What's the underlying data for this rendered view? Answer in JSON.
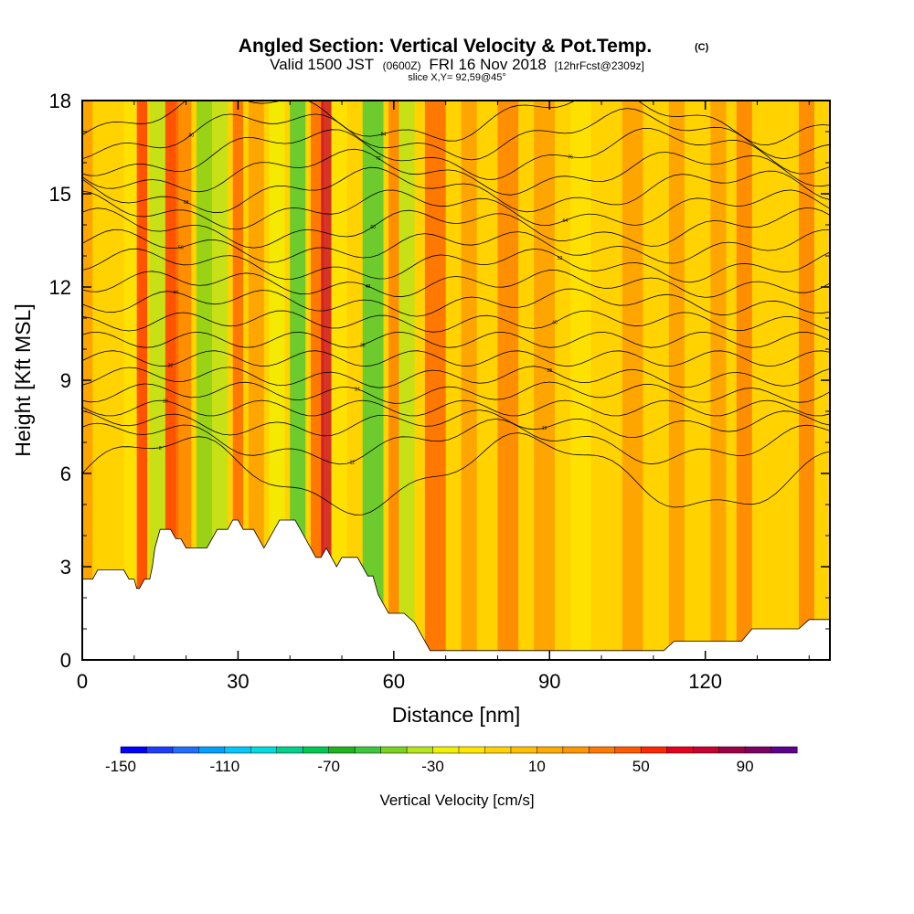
{
  "header": {
    "title": "Angled Section: Vertical Velocity & Pot.Temp.",
    "title_unit": "(C)",
    "valid_prefix": "Valid 1500 JST",
    "valid_utc": "(0600Z)",
    "valid_date": "FRI 16 Nov 2018",
    "forecast_info": "[12hrFcst@2309z]",
    "slice_info": "slice X,Y= 92,59@45°"
  },
  "chart_data": {
    "type": "heatmap",
    "xlabel": "Distance [nm]",
    "ylabel": "Height [Kft MSL]",
    "xlim": [
      0,
      144
    ],
    "ylim": [
      0,
      18
    ],
    "x_ticks": [
      0,
      30,
      60,
      90,
      120
    ],
    "y_ticks": [
      0,
      3,
      6,
      9,
      12,
      15,
      18
    ],
    "colorbar": {
      "label": "Vertical Velocity [cm/s]",
      "min": -150,
      "max": 110,
      "step": 10,
      "tick_values": [
        -150,
        -110,
        -70,
        -30,
        10,
        50,
        90
      ],
      "colors": [
        "#0000ff",
        "#1e3cff",
        "#1e6eff",
        "#00a0ff",
        "#00c8ff",
        "#00dcdc",
        "#00d28c",
        "#00c850",
        "#1eb41e",
        "#3cc83c",
        "#78d21e",
        "#b4e61e",
        "#f0f000",
        "#ffe600",
        "#ffd200",
        "#ffbe00",
        "#ffaa00",
        "#ff9600",
        "#ff7800",
        "#ff5a00",
        "#ff2800",
        "#e6001e",
        "#c80032",
        "#a00046",
        "#7d0064",
        "#5a008c"
      ]
    },
    "velocity_columns": [
      {
        "x": 0,
        "w": 2,
        "v": 20
      },
      {
        "x": 8,
        "w": 3,
        "v": -20
      },
      {
        "x": 10.5,
        "w": 2,
        "v": 50
      },
      {
        "x": 13,
        "w": 3,
        "v": -40
      },
      {
        "x": 16,
        "w": 2.5,
        "v": 50
      },
      {
        "x": 18,
        "w": 3,
        "v": 30
      },
      {
        "x": 22,
        "w": 3,
        "v": -50
      },
      {
        "x": 25,
        "w": 3,
        "v": -40
      },
      {
        "x": 29,
        "w": 2,
        "v": 40
      },
      {
        "x": 32,
        "w": 3,
        "v": 20
      },
      {
        "x": 36,
        "w": 3,
        "v": -30
      },
      {
        "x": 40,
        "w": 3,
        "v": -60
      },
      {
        "x": 44,
        "w": 2.5,
        "v": 40
      },
      {
        "x": 46,
        "w": 2,
        "v": 70
      },
      {
        "x": 48,
        "w": 3,
        "v": -20
      },
      {
        "x": 54,
        "w": 4,
        "v": -60
      },
      {
        "x": 59,
        "w": 2,
        "v": 30
      },
      {
        "x": 61,
        "w": 3,
        "v": -40
      },
      {
        "x": 66,
        "w": 4,
        "v": 40
      },
      {
        "x": 73,
        "w": 3,
        "v": 20
      },
      {
        "x": 80,
        "w": 4,
        "v": 30
      },
      {
        "x": 87,
        "w": 4,
        "v": 20
      },
      {
        "x": 94,
        "w": 4,
        "v": -20
      },
      {
        "x": 104,
        "w": 4,
        "v": 20
      },
      {
        "x": 113,
        "w": 3,
        "v": 20
      },
      {
        "x": 121,
        "w": 3,
        "v": 20
      },
      {
        "x": 126,
        "w": 3,
        "v": 30
      },
      {
        "x": 138,
        "w": 3,
        "v": 30
      }
    ],
    "terrain": [
      [
        0,
        2.6
      ],
      [
        2,
        2.6
      ],
      [
        3,
        2.9
      ],
      [
        8,
        2.9
      ],
      [
        9,
        2.6
      ],
      [
        10,
        2.6
      ],
      [
        10.5,
        2.3
      ],
      [
        11,
        2.3
      ],
      [
        12,
        2.6
      ],
      [
        13,
        2.6
      ],
      [
        13.5,
        3.0
      ],
      [
        14,
        3.6
      ],
      [
        15,
        4.2
      ],
      [
        17,
        4.2
      ],
      [
        18,
        3.9
      ],
      [
        19,
        3.9
      ],
      [
        20,
        3.6
      ],
      [
        24,
        3.6
      ],
      [
        25,
        3.9
      ],
      [
        26,
        4.2
      ],
      [
        28,
        4.2
      ],
      [
        29,
        4.5
      ],
      [
        30,
        4.5
      ],
      [
        31,
        4.2
      ],
      [
        33,
        4.2
      ],
      [
        34,
        3.9
      ],
      [
        35,
        3.6
      ],
      [
        36,
        3.9
      ],
      [
        37,
        4.2
      ],
      [
        38,
        4.5
      ],
      [
        41,
        4.5
      ],
      [
        42,
        4.2
      ],
      [
        43,
        3.9
      ],
      [
        44,
        3.6
      ],
      [
        45,
        3.3
      ],
      [
        46,
        3.3
      ],
      [
        47,
        3.6
      ],
      [
        48,
        3.3
      ],
      [
        49,
        3.0
      ],
      [
        50,
        3.3
      ],
      [
        53,
        3.3
      ],
      [
        54,
        3.0
      ],
      [
        55,
        2.7
      ],
      [
        56,
        2.7
      ],
      [
        57,
        2.1
      ],
      [
        58,
        1.8
      ],
      [
        59,
        1.5
      ],
      [
        62,
        1.5
      ],
      [
        64,
        1.2
      ],
      [
        65,
        0.9
      ],
      [
        66,
        0.6
      ],
      [
        67,
        0.3
      ],
      [
        112,
        0.3
      ],
      [
        114,
        0.6
      ],
      [
        127,
        0.6
      ],
      [
        129,
        1.0
      ],
      [
        138,
        1.0
      ],
      [
        140,
        1.3
      ],
      [
        144,
        1.3
      ]
    ],
    "theta_contours": [
      {
        "base": 6.0,
        "offset": 1.1,
        "label": "8"
      },
      {
        "base": 7.0,
        "offset": 0.5,
        "label": "12"
      },
      {
        "base": 7.6,
        "offset": 0.2,
        "label": "16"
      },
      {
        "base": 8.1,
        "offset": 0.0,
        "label": "20"
      },
      {
        "base": 8.6,
        "offset": -0.1,
        "label": "24"
      },
      {
        "base": 9.1,
        "offset": -0.1,
        "label": "28"
      },
      {
        "base": 9.7,
        "offset": 0.0,
        "label": "32"
      },
      {
        "base": 10.3,
        "offset": 0.0,
        "label": "36"
      },
      {
        "base": 10.9,
        "offset": 0.1,
        "label": "40"
      },
      {
        "base": 11.5,
        "offset": 0.2,
        "label": "44"
      },
      {
        "base": 12.1,
        "offset": 0.2,
        "label": "48"
      },
      {
        "base": 12.7,
        "offset": 0.3,
        "label": "52"
      },
      {
        "base": 13.3,
        "offset": 0.3,
        "label": "56"
      },
      {
        "base": 13.9,
        "offset": 0.4,
        "label": "60"
      },
      {
        "base": 14.5,
        "offset": 0.4,
        "label": "64"
      },
      {
        "base": 15.1,
        "offset": 0.5,
        "label": "68"
      },
      {
        "base": 15.7,
        "offset": 0.5,
        "label": "72"
      },
      {
        "base": 16.3,
        "offset": 0.6,
        "label": "76"
      },
      {
        "base": 16.9,
        "offset": 0.6,
        "label": "80"
      },
      {
        "base": 17.5,
        "offset": 0.7,
        "label": "84"
      }
    ]
  }
}
